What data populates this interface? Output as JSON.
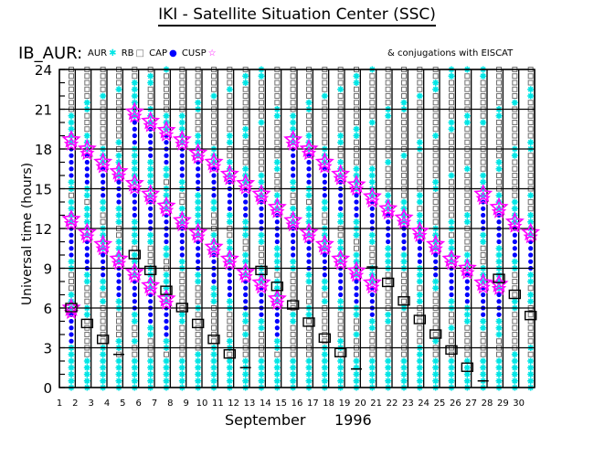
{
  "title": "IKI - Satellite Situation Center (SSC)",
  "satellite_label": "IB_AUR:",
  "legend": {
    "aur": "AUR",
    "rb": "RB",
    "cap": "CAP",
    "cusp": "CUSP"
  },
  "conjugation_note": "& conjugations with EISCAT",
  "colors": {
    "aur": "#00e5e5",
    "rb": "#707070",
    "cap": "#0000ff",
    "cusp": "#ff00ff",
    "grid": "#000000"
  },
  "chart_data": {
    "type": "scatter",
    "title": "IKI - Satellite Situation Center (SSC)",
    "ylabel": "Universal time (hours)",
    "xlabel": "September",
    "xlabel_year": "1996",
    "xlim": [
      1,
      31
    ],
    "ylim": [
      0,
      24
    ],
    "x_ticks": [
      "1",
      "2",
      "3",
      "4",
      "5",
      "6",
      "7",
      "8",
      "9",
      "10",
      "11",
      "12",
      "13",
      "14",
      "15",
      "16",
      "17",
      "18",
      "19",
      "20",
      "21",
      "22",
      "23",
      "24",
      "25",
      "26",
      "27",
      "28",
      "29",
      "30"
    ],
    "y_ticks": [
      "0",
      "3",
      "6",
      "9",
      "12",
      "15",
      "18",
      "21",
      "24"
    ],
    "grid": true,
    "days": [
      {
        "day": 1,
        "cusp": [
          18.7,
          12.7,
          6.0
        ],
        "eiscat": 6.0,
        "eiscat_mark": "box"
      },
      {
        "day": 2,
        "cusp": [
          18.0,
          11.7
        ],
        "eiscat": 4.8,
        "eiscat_mark": "box"
      },
      {
        "day": 3,
        "cusp": [
          17.0,
          10.8
        ],
        "eiscat": 3.6,
        "eiscat_mark": "box"
      },
      {
        "day": 4,
        "cusp": [
          16.3,
          9.7
        ],
        "eiscat": 2.5,
        "eiscat_mark": "line"
      },
      {
        "day": 5,
        "cusp": [
          20.8,
          15.4,
          8.7
        ],
        "eiscat": 10.0,
        "eiscat_mark": "box"
      },
      {
        "day": 6,
        "cusp": [
          20.1,
          14.6,
          7.7
        ],
        "eiscat": 8.8,
        "eiscat_mark": "box"
      },
      {
        "day": 7,
        "cusp": [
          19.4,
          13.7,
          6.7
        ],
        "eiscat": 7.3,
        "eiscat_mark": "box"
      },
      {
        "day": 8,
        "cusp": [
          18.7,
          12.6
        ],
        "eiscat": 6.0,
        "eiscat_mark": "box"
      },
      {
        "day": 9,
        "cusp": [
          17.7,
          11.7
        ],
        "eiscat": 4.8,
        "eiscat_mark": "box"
      },
      {
        "day": 10,
        "cusp": [
          17.0,
          10.6
        ],
        "eiscat": 3.6,
        "eiscat_mark": "box"
      },
      {
        "day": 11,
        "cusp": [
          16.1,
          9.7
        ],
        "eiscat": 2.5,
        "eiscat_mark": "box"
      },
      {
        "day": 12,
        "cusp": [
          15.4,
          8.7
        ],
        "eiscat": 1.5,
        "eiscat_mark": "line"
      },
      {
        "day": 13,
        "cusp": [
          14.6,
          7.9
        ],
        "eiscat": 8.8,
        "eiscat_mark": "box"
      },
      {
        "day": 14,
        "cusp": [
          13.6,
          6.7
        ],
        "eiscat": 7.6,
        "eiscat_mark": "box"
      },
      {
        "day": 15,
        "cusp": [
          18.7,
          12.6
        ],
        "eiscat": 6.2,
        "eiscat_mark": "box"
      },
      {
        "day": 16,
        "cusp": [
          18.0,
          11.7
        ],
        "eiscat": 4.9,
        "eiscat_mark": "box"
      },
      {
        "day": 17,
        "cusp": [
          17.0,
          10.8
        ],
        "eiscat": 3.7,
        "eiscat_mark": "box"
      },
      {
        "day": 18,
        "cusp": [
          16.1,
          9.7
        ],
        "eiscat": 2.6,
        "eiscat_mark": "box"
      },
      {
        "day": 19,
        "cusp": [
          15.3,
          8.8
        ],
        "eiscat": 1.4,
        "eiscat_mark": "line"
      },
      {
        "day": 20,
        "cusp": [
          14.4,
          7.9
        ],
        "eiscat": 9.1,
        "eiscat_mark": "line"
      },
      {
        "day": 21,
        "cusp": [
          13.5
        ],
        "eiscat": 7.9,
        "eiscat_mark": "box"
      },
      {
        "day": 22,
        "cusp": [
          12.8
        ],
        "eiscat": 6.5,
        "eiscat_mark": "box"
      },
      {
        "day": 23,
        "cusp": [
          11.8
        ],
        "eiscat": 5.1,
        "eiscat_mark": "box"
      },
      {
        "day": 24,
        "cusp": [
          10.8
        ],
        "eiscat": 4.0,
        "eiscat_mark": "box"
      },
      {
        "day": 25,
        "cusp": [
          9.7
        ],
        "eiscat": 2.8,
        "eiscat_mark": "box"
      },
      {
        "day": 26,
        "cusp": [
          9.0
        ],
        "eiscat": 1.5,
        "eiscat_mark": "box"
      },
      {
        "day": 27,
        "cusp": [
          14.6,
          7.9
        ],
        "eiscat": 0.5,
        "eiscat_mark": "line"
      },
      {
        "day": 28,
        "cusp": [
          13.6,
          7.8
        ],
        "eiscat": 8.2,
        "eiscat_mark": "box"
      },
      {
        "day": 29,
        "cusp": [
          12.5
        ],
        "eiscat": 7.0,
        "eiscat_mark": "box"
      },
      {
        "day": 30,
        "cusp": [
          11.7
        ],
        "eiscat": 5.4,
        "eiscat_mark": "box"
      }
    ]
  }
}
